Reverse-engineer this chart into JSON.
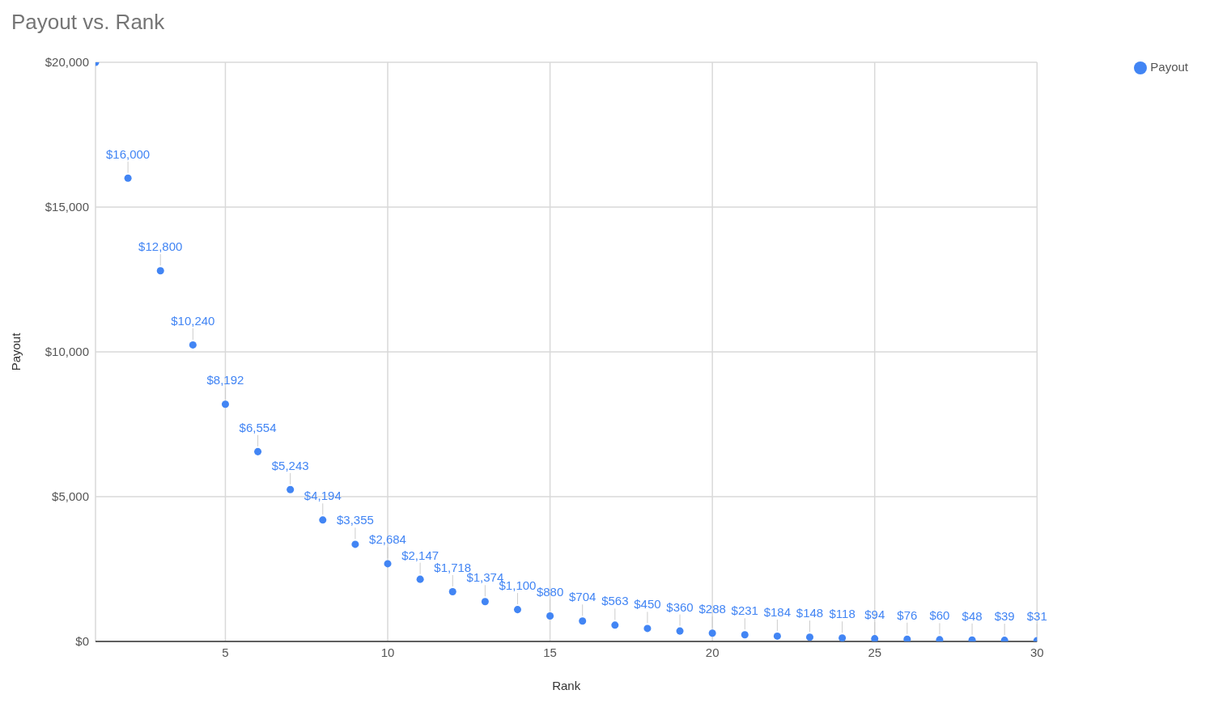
{
  "chart_data": {
    "type": "scatter",
    "title": "Payout vs. Rank",
    "xlabel": "Rank",
    "ylabel": "Payout",
    "x": [
      1,
      2,
      3,
      4,
      5,
      6,
      7,
      8,
      9,
      10,
      11,
      12,
      13,
      14,
      15,
      16,
      17,
      18,
      19,
      20,
      21,
      22,
      23,
      24,
      25,
      26,
      27,
      28,
      29,
      30
    ],
    "series": [
      {
        "name": "Payout",
        "color": "#4285f4",
        "values": [
          20000,
          16000,
          12800,
          10240,
          8192,
          6554,
          5243,
          4194,
          3355,
          2684,
          2147,
          1718,
          1374,
          1100,
          880,
          704,
          563,
          450,
          360,
          288,
          231,
          184,
          148,
          118,
          94,
          76,
          60,
          48,
          39,
          31
        ],
        "value_labels": [
          null,
          "$16,000",
          "$12,800",
          "$10,240",
          "$8,192",
          "$6,554",
          "$5,243",
          "$4,194",
          "$3,355",
          "$2,684",
          "$2,147",
          "$1,718",
          "$1,374",
          "$1,100",
          "$880",
          "$704",
          "$563",
          "$450",
          "$360",
          "$288",
          "$231",
          "$184",
          "$148",
          "$118",
          "$94",
          "$76",
          "$60",
          "$48",
          "$39",
          "$31"
        ]
      }
    ],
    "xlim": [
      1,
      30
    ],
    "xticks": [
      5,
      10,
      15,
      20,
      25,
      30
    ],
    "ylim": [
      0,
      20000
    ],
    "yticks": [
      {
        "value": 0,
        "label": "$0"
      },
      {
        "value": 5000,
        "label": "$5,000"
      },
      {
        "value": 10000,
        "label": "$10,000"
      },
      {
        "value": 15000,
        "label": "$15,000"
      },
      {
        "value": 20000,
        "label": "$20,000"
      }
    ],
    "grid": true,
    "legend": "top right",
    "marker": "circle"
  }
}
